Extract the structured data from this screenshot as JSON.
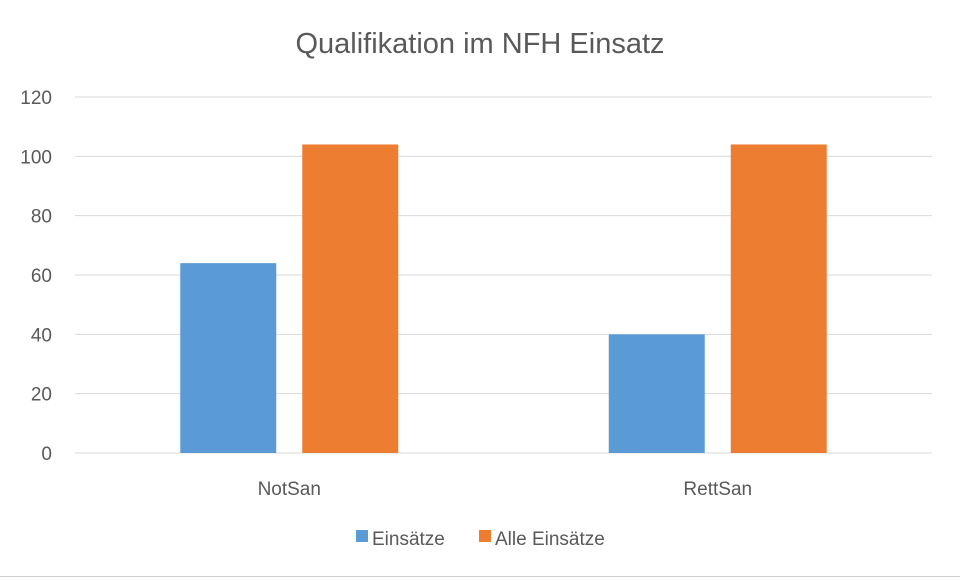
{
  "chart_data": {
    "type": "bar",
    "title": "Qualifikation im NFH Einsatz",
    "categories": [
      "NotSan",
      "RettSan"
    ],
    "series": [
      {
        "name": "Einsätze",
        "values": [
          64,
          40
        ]
      },
      {
        "name": "Alle Einsätze",
        "values": [
          104,
          104
        ]
      }
    ],
    "ylim": [
      0,
      120
    ],
    "yticks": [
      0,
      20,
      40,
      60,
      80,
      100,
      120
    ],
    "xlabel": "",
    "ylabel": "",
    "grid": true,
    "legend_position": "bottom"
  },
  "colors": {
    "series": [
      "#5b9bd5",
      "#ed7d31"
    ],
    "grid": "#d9d9d9",
    "text": "#595959"
  }
}
